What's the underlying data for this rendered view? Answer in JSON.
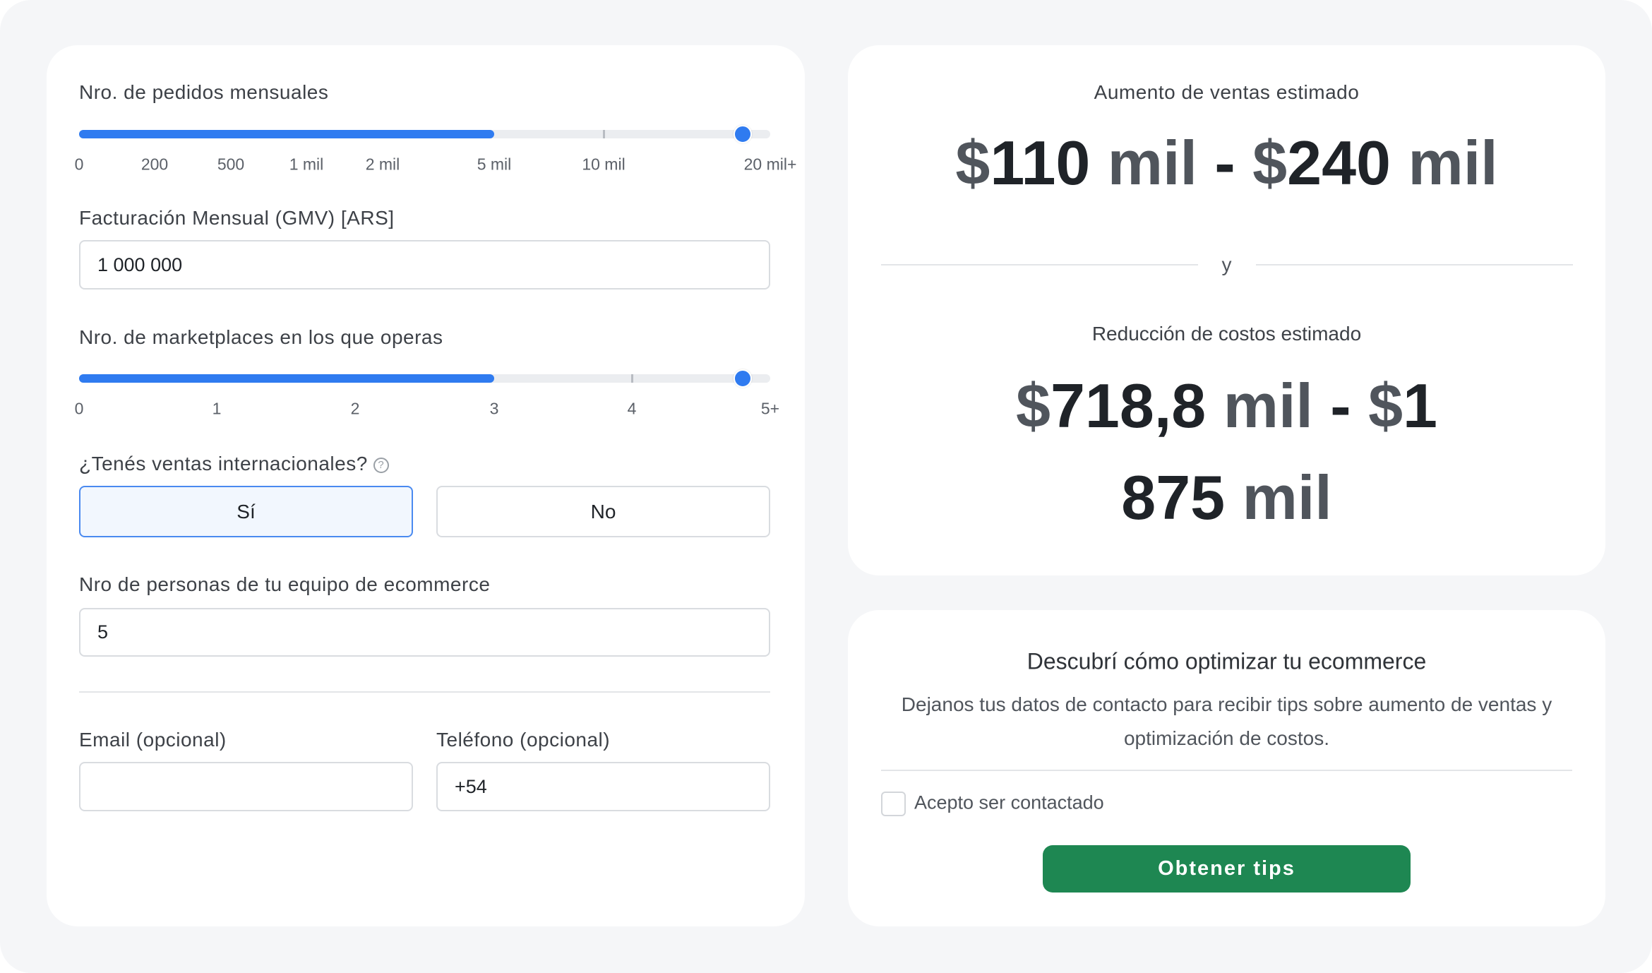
{
  "form": {
    "orders": {
      "label": "Nro. de pedidos mensuales",
      "ticks": [
        "0",
        "200",
        "500",
        "1 mil",
        "2 mil",
        "5 mil",
        "10 mil",
        "20 mil+"
      ],
      "selected_value": "20 mil+",
      "fill_to": "5 mil"
    },
    "gmv": {
      "label": "Facturación Mensual (GMV) [ARS]",
      "value": "1 000 000"
    },
    "marketplaces": {
      "label": "Nro. de marketplaces en los que operas",
      "ticks": [
        "0",
        "1",
        "2",
        "3",
        "4",
        "5+"
      ],
      "selected_value": "5+",
      "fill_to": "3"
    },
    "international": {
      "label": "¿Tenés ventas internacionales?",
      "help_icon": "question-circle-icon",
      "options": [
        "Sí",
        "No"
      ],
      "selected": "Sí"
    },
    "team": {
      "label": "Nro de personas de tu equipo de ecommerce",
      "value": "5"
    },
    "email": {
      "label": "Email (opcional)",
      "value": ""
    },
    "phone": {
      "label": "Teléfono (opcional)",
      "value": "+54"
    }
  },
  "results": {
    "sales": {
      "label": "Aumento de ventas estimado",
      "value": "$110 mil - $240 mil"
    },
    "separator": "y",
    "costs": {
      "label": "Reducción de costos estimado",
      "value": "$718,8 mil - $1 875 mil"
    }
  },
  "tips": {
    "title": "Descubrí cómo optimizar tu ecommerce",
    "description_line1": "Dejanos tus datos de contacto para recibir tips sobre aumento de ventas y",
    "description_line2": "optimización de costos.",
    "consent_label": "Acepto ser contactado",
    "consent_checked": false,
    "button_label": "Obtener tips"
  },
  "colors": {
    "accent": "#2f7bf0",
    "button": "#1e8752",
    "background": "#f5f6f8"
  }
}
